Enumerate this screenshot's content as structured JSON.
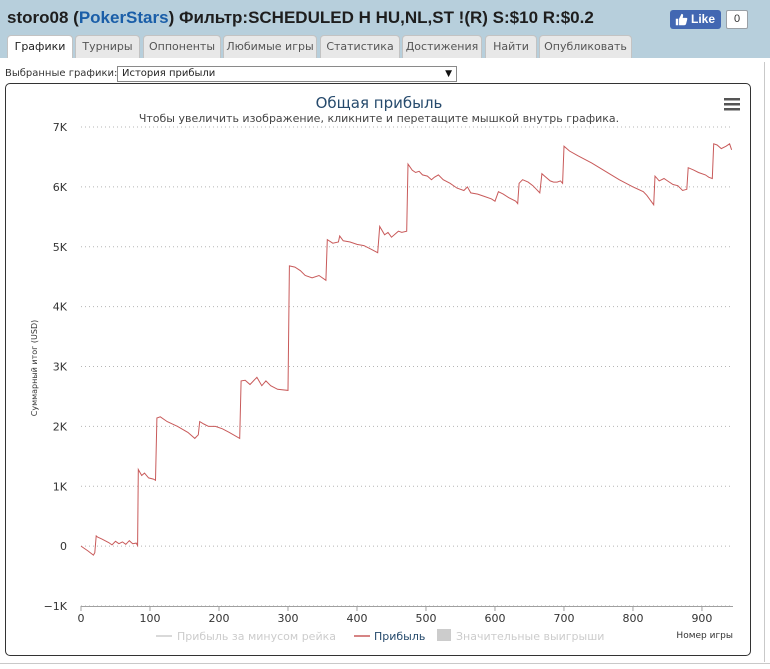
{
  "header": {
    "player": "storo08",
    "open_paren": " (",
    "site": "PokerStars",
    "filter_text": ") Фильтр:SCHEDULED H HU,NL,ST !(R) S:$10 R:$0.2",
    "like_label": "Like",
    "like_count": "0"
  },
  "tabs": [
    {
      "label": "Графики",
      "active": true
    },
    {
      "label": "Турниры"
    },
    {
      "label": "Оппоненты"
    },
    {
      "label": "Любимые игры"
    },
    {
      "label": "Статистика"
    },
    {
      "label": "Достижения"
    },
    {
      "label": "Найти"
    },
    {
      "label": "Опубликовать"
    }
  ],
  "selector": {
    "label": "Выбранные графики:",
    "value": "История прибыли"
  },
  "icons": {
    "like": "thumbs-up-icon",
    "menu": "hamburger-menu-icon",
    "dropdown": "dropdown-arrow-icon"
  },
  "colors": {
    "header_bg": "#b7cfdc",
    "site_link": "#1a5ea8",
    "profit_line": "#c85a5a",
    "title": "#274b6d"
  },
  "chart_data": {
    "type": "line",
    "title": "Общая прибыль",
    "subtitle": "Чтобы увеличить изображение, кликните и перетащите мышкой внутрь графика.",
    "ylabel": "Суммарный итог (USD)",
    "xlabel": "Номер игры",
    "xlim": [
      0,
      945
    ],
    "ylim": [
      -1000,
      7000
    ],
    "y_ticks": [
      -1000,
      0,
      1000,
      2000,
      3000,
      4000,
      5000,
      6000,
      7000
    ],
    "y_tick_labels": [
      "−1K",
      "0",
      "1K",
      "2K",
      "3K",
      "4K",
      "5K",
      "6K",
      "7K"
    ],
    "x_ticks": [
      0,
      100,
      200,
      300,
      400,
      500,
      600,
      700,
      800,
      900
    ],
    "x_tick_labels": [
      "0",
      "100",
      "200",
      "300",
      "400",
      "500",
      "600",
      "700",
      "800",
      "900"
    ],
    "grid": true,
    "legend_position": "bottom",
    "legend": [
      {
        "name": "Прибыль за минусом рейка",
        "visible": false
      },
      {
        "name": "Прибыль",
        "visible": true
      },
      {
        "name": "Значительные выигрыши",
        "visible": false
      }
    ],
    "series": [
      {
        "name": "Прибыль",
        "color": "#c85a5a",
        "points": [
          [
            0,
            0
          ],
          [
            10,
            -80
          ],
          [
            18,
            -150
          ],
          [
            20,
            -110
          ],
          [
            22,
            170
          ],
          [
            24,
            150
          ],
          [
            30,
            120
          ],
          [
            40,
            60
          ],
          [
            45,
            20
          ],
          [
            50,
            80
          ],
          [
            55,
            40
          ],
          [
            60,
            70
          ],
          [
            65,
            30
          ],
          [
            70,
            90
          ],
          [
            75,
            40
          ],
          [
            80,
            50
          ],
          [
            82,
            10
          ],
          [
            83,
            1280
          ],
          [
            88,
            1180
          ],
          [
            92,
            1220
          ],
          [
            98,
            1140
          ],
          [
            105,
            1120
          ],
          [
            108,
            1100
          ],
          [
            110,
            2140
          ],
          [
            115,
            2160
          ],
          [
            125,
            2080
          ],
          [
            140,
            2000
          ],
          [
            155,
            1900
          ],
          [
            165,
            1800
          ],
          [
            170,
            1860
          ],
          [
            172,
            2080
          ],
          [
            178,
            2040
          ],
          [
            185,
            2000
          ],
          [
            195,
            2000
          ],
          [
            205,
            1960
          ],
          [
            215,
            1900
          ],
          [
            230,
            1800
          ],
          [
            232,
            2760
          ],
          [
            238,
            2770
          ],
          [
            245,
            2700
          ],
          [
            255,
            2820
          ],
          [
            262,
            2680
          ],
          [
            268,
            2760
          ],
          [
            275,
            2680
          ],
          [
            285,
            2620
          ],
          [
            300,
            2600
          ],
          [
            302,
            4680
          ],
          [
            310,
            4660
          ],
          [
            318,
            4600
          ],
          [
            325,
            4520
          ],
          [
            335,
            4480
          ],
          [
            345,
            4520
          ],
          [
            355,
            4440
          ],
          [
            357,
            5120
          ],
          [
            365,
            5060
          ],
          [
            373,
            5080
          ],
          [
            375,
            5180
          ],
          [
            380,
            5100
          ],
          [
            390,
            5080
          ],
          [
            400,
            5040
          ],
          [
            410,
            5020
          ],
          [
            420,
            4960
          ],
          [
            430,
            4900
          ],
          [
            433,
            5340
          ],
          [
            440,
            5200
          ],
          [
            445,
            5240
          ],
          [
            450,
            5160
          ],
          [
            460,
            5260
          ],
          [
            465,
            5240
          ],
          [
            472,
            5260
          ],
          [
            474,
            6380
          ],
          [
            480,
            6280
          ],
          [
            485,
            6240
          ],
          [
            490,
            6260
          ],
          [
            495,
            6200
          ],
          [
            502,
            6180
          ],
          [
            508,
            6120
          ],
          [
            512,
            6160
          ],
          [
            518,
            6200
          ],
          [
            525,
            6120
          ],
          [
            535,
            6060
          ],
          [
            545,
            5980
          ],
          [
            555,
            5940
          ],
          [
            560,
            6000
          ],
          [
            565,
            5900
          ],
          [
            575,
            5880
          ],
          [
            585,
            5840
          ],
          [
            595,
            5800
          ],
          [
            600,
            5760
          ],
          [
            605,
            5920
          ],
          [
            612,
            5880
          ],
          [
            620,
            5820
          ],
          [
            630,
            5760
          ],
          [
            633,
            5720
          ],
          [
            635,
            6060
          ],
          [
            640,
            6120
          ],
          [
            648,
            6080
          ],
          [
            655,
            6020
          ],
          [
            660,
            5960
          ],
          [
            665,
            5900
          ],
          [
            668,
            6220
          ],
          [
            672,
            6180
          ],
          [
            680,
            6100
          ],
          [
            685,
            6080
          ],
          [
            690,
            6080
          ],
          [
            695,
            6100
          ],
          [
            698,
            6060
          ],
          [
            700,
            6680
          ],
          [
            708,
            6600
          ],
          [
            720,
            6520
          ],
          [
            740,
            6400
          ],
          [
            760,
            6260
          ],
          [
            780,
            6120
          ],
          [
            800,
            6000
          ],
          [
            815,
            5920
          ],
          [
            820,
            5860
          ],
          [
            830,
            5700
          ],
          [
            832,
            6180
          ],
          [
            838,
            6100
          ],
          [
            845,
            6140
          ],
          [
            850,
            6100
          ],
          [
            858,
            6040
          ],
          [
            865,
            6020
          ],
          [
            872,
            5940
          ],
          [
            878,
            5960
          ],
          [
            880,
            6320
          ],
          [
            888,
            6280
          ],
          [
            895,
            6240
          ],
          [
            905,
            6200
          ],
          [
            910,
            6160
          ],
          [
            915,
            6140
          ],
          [
            917,
            6720
          ],
          [
            922,
            6700
          ],
          [
            928,
            6640
          ],
          [
            935,
            6680
          ],
          [
            940,
            6720
          ],
          [
            943,
            6620
          ]
        ]
      }
    ]
  }
}
